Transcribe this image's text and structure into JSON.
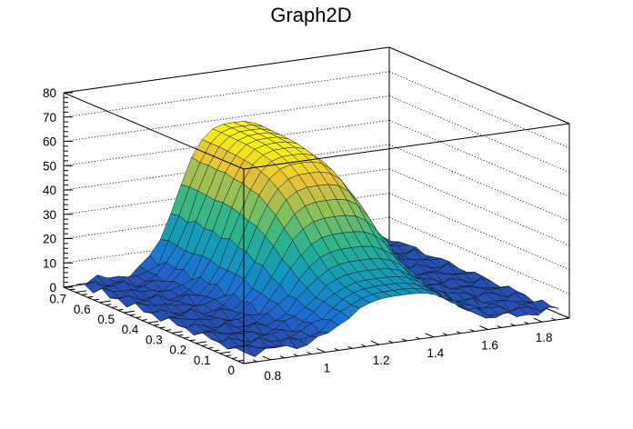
{
  "chart_data": {
    "type": "surface3d",
    "title": "Graph2D",
    "xlabel": "",
    "ylabel": "",
    "zlabel": "",
    "xlim": [
      0.7,
      1.9
    ],
    "ylim": [
      0,
      0.75
    ],
    "zlim": [
      0,
      80
    ],
    "x_ticks": [
      "0.8",
      "1",
      "1.2",
      "1.4",
      "1.6",
      "1.8"
    ],
    "y_ticks": [
      "0",
      "0.1",
      "0.2",
      "0.3",
      "0.4",
      "0.5",
      "0.6",
      "0.7"
    ],
    "z_ticks": [
      "0",
      "10",
      "20",
      "30",
      "40",
      "50",
      "60",
      "70",
      "80"
    ],
    "grid": true,
    "palette": "kBird",
    "peak": {
      "x": 1.3,
      "y": 0.6,
      "z": 58
    },
    "surface_model": {
      "peak_height": 58,
      "x_center": 1.3,
      "x_halfwidth": 0.24,
      "y_width": 0.3,
      "background_level": 3,
      "noise": 2
    },
    "grid_size": {
      "nx": 30,
      "ny": 20
    }
  }
}
